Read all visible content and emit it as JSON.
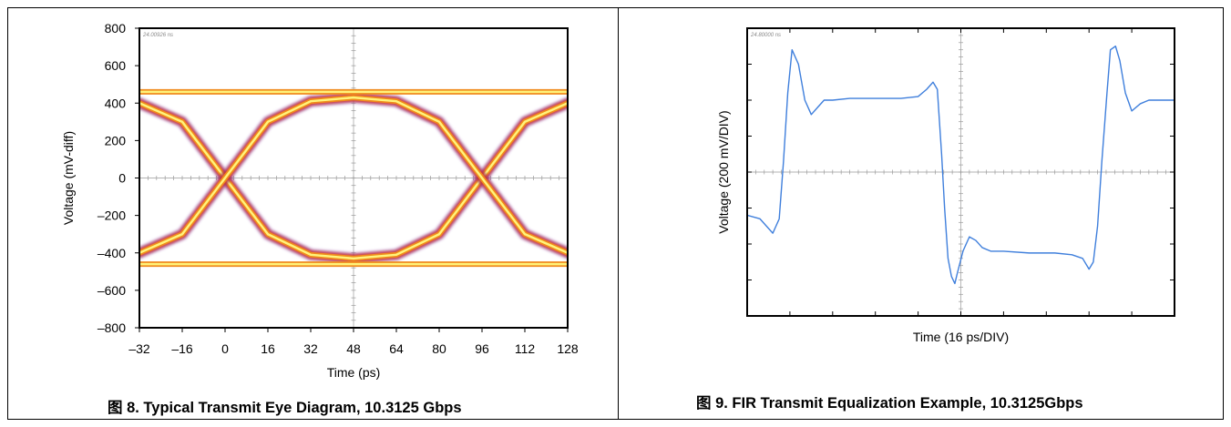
{
  "figures": [
    {
      "caption": "图 8.  Typical Transmit Eye Diagram, 10.3125 Gbps",
      "scope_stamp": "24.00926 ns"
    },
    {
      "caption": "图 9.  FIR Transmit Equalization Example, 10.3125Gbps",
      "scope_stamp": "24.80000 ns"
    }
  ],
  "chart_data": [
    {
      "type": "line",
      "subtype": "eye-diagram",
      "xlabel": "Time (ps)",
      "ylabel": "Voltage (mV-diff)",
      "xlim": [
        -32,
        128
      ],
      "ylim": [
        -800,
        800
      ],
      "xticks": [
        -32,
        -16,
        0,
        16,
        32,
        48,
        64,
        80,
        96,
        112,
        128
      ],
      "xtick_labels": [
        "–32",
        "–16",
        "0",
        "16",
        "32",
        "48",
        "64",
        "80",
        "96",
        "112",
        "128"
      ],
      "yticks": [
        800,
        600,
        400,
        200,
        0,
        -200,
        -400,
        -600,
        -800
      ],
      "ytick_labels": [
        "800",
        "600",
        "400",
        "200",
        "0",
        "–200",
        "–400",
        "–600",
        "–800"
      ],
      "grid": "center-crosshair",
      "series": [
        {
          "x": [
            -32,
            -16,
            0,
            16,
            32,
            48,
            64,
            80,
            96,
            112,
            128
          ],
          "y": [
            400,
            300,
            0,
            -300,
            -410,
            -430,
            -410,
            -300,
            0,
            300,
            400
          ]
        },
        {
          "x": [
            -32,
            -16,
            0,
            16,
            32,
            48,
            64,
            80,
            96,
            112,
            128
          ],
          "y": [
            -400,
            -300,
            0,
            300,
            410,
            430,
            410,
            300,
            0,
            -300,
            -400
          ]
        },
        {
          "x": [
            -32,
            128
          ],
          "y": [
            460,
            460
          ]
        },
        {
          "x": [
            -32,
            128
          ],
          "y": [
            -460,
            -460
          ]
        }
      ]
    },
    {
      "type": "line",
      "xlabel": "Time (16 ps/DIV)",
      "ylabel": "Voltage (200 mV/DIV)",
      "x_unit": "divisions",
      "y_unit": "divisions",
      "xlim": [
        0,
        10
      ],
      "ylim": [
        -4,
        4
      ],
      "grid": "center-crosshair",
      "color": "#3f7fdc",
      "series": [
        {
          "x": [
            0,
            0.3,
            0.6,
            0.75,
            0.85,
            0.95,
            1.05,
            1.2,
            1.35,
            1.5,
            1.65,
            1.8,
            2.0,
            2.4,
            3.0,
            3.6,
            4.0,
            4.2,
            4.35,
            4.45,
            4.55,
            4.62,
            4.7,
            4.78,
            4.86,
            4.92,
            5.05,
            5.2,
            5.35,
            5.5,
            5.7,
            6.0,
            6.6,
            7.2,
            7.6,
            7.85,
            8.0,
            8.1,
            8.2,
            8.3,
            8.42,
            8.5,
            8.62,
            8.72,
            8.85,
            9.0,
            9.2,
            9.4,
            9.6,
            10
          ],
          "y": [
            -1.2,
            -1.3,
            -1.7,
            -1.3,
            0.3,
            2.2,
            3.4,
            3.0,
            2.0,
            1.6,
            1.8,
            2.0,
            2.0,
            2.05,
            2.05,
            2.05,
            2.1,
            2.3,
            2.5,
            2.3,
            0.5,
            -1.0,
            -2.4,
            -2.9,
            -3.1,
            -2.8,
            -2.2,
            -1.8,
            -1.9,
            -2.1,
            -2.2,
            -2.2,
            -2.25,
            -2.25,
            -2.3,
            -2.4,
            -2.7,
            -2.5,
            -1.5,
            0.3,
            2.2,
            3.4,
            3.5,
            3.1,
            2.2,
            1.7,
            1.9,
            2.0,
            2.0,
            2.0
          ]
        }
      ]
    }
  ]
}
